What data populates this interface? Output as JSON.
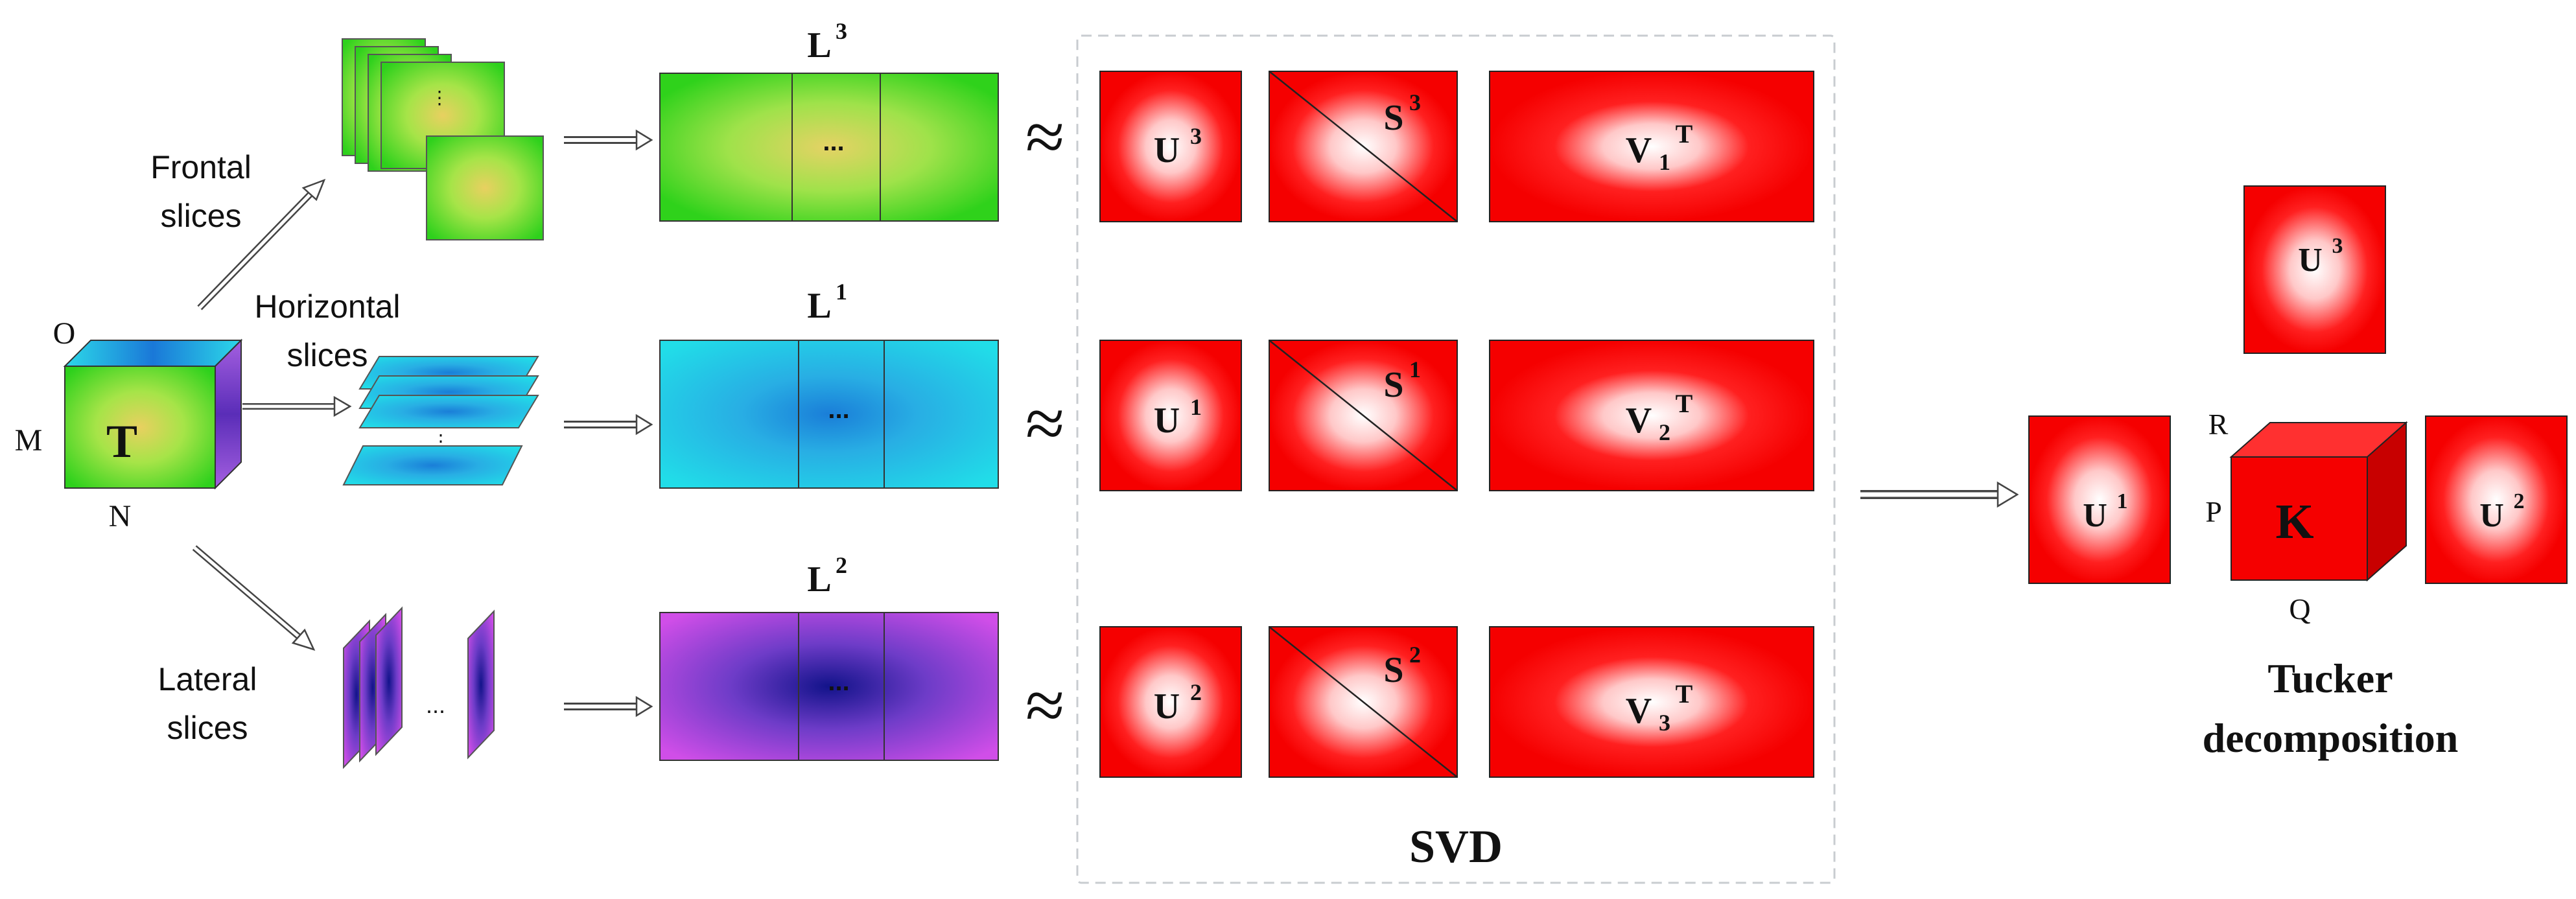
{
  "tensor": {
    "letter": "T",
    "dim_o": "O",
    "dim_m": "M",
    "dim_n": "N"
  },
  "slices": {
    "frontal_line1": "Frontal",
    "frontal_line2": "slices",
    "horizontal_line1": "Horizontal",
    "horizontal_line2": "slices",
    "lateral_line1": "Lateral",
    "lateral_line2": "slices",
    "dots_vertical": "⋮",
    "dots_horizontal": "..."
  },
  "unfoldings": {
    "l3_base": "L",
    "l3_sup": "3",
    "l1_base": "L",
    "l1_sup": "1",
    "l2_base": "L",
    "l2_sup": "2",
    "ellipsis": "..."
  },
  "approx_symbol": "≈",
  "svd": {
    "label": "SVD",
    "row1": {
      "u_base": "U",
      "u_sup": "3",
      "s_base": "S",
      "s_sup": "3",
      "v_base": "V",
      "v_sub": "1",
      "v_sup": "T"
    },
    "row2": {
      "u_base": "U",
      "u_sup": "1",
      "s_base": "S",
      "s_sup": "1",
      "v_base": "V",
      "v_sub": "2",
      "v_sup": "T"
    },
    "row3": {
      "u_base": "U",
      "u_sup": "2",
      "s_base": "S",
      "s_sup": "2",
      "v_base": "V",
      "v_sub": "3",
      "v_sup": "T"
    }
  },
  "tucker": {
    "top_base": "U",
    "top_sup": "3",
    "left_base": "U",
    "left_sup": "1",
    "right_base": "U",
    "right_sup": "2",
    "core_letter": "K",
    "dim_r": "R",
    "dim_p": "P",
    "dim_q": "Q",
    "caption_line1": "Tucker",
    "caption_line2": "decomposition"
  },
  "colors": {
    "factor_red": "#f50000",
    "frontal_green": "#5fe03a",
    "horizontal_cyan": "#20d0e0",
    "lateral_purple": "#8a4fd8",
    "svd_border": "#c8ccd0"
  }
}
